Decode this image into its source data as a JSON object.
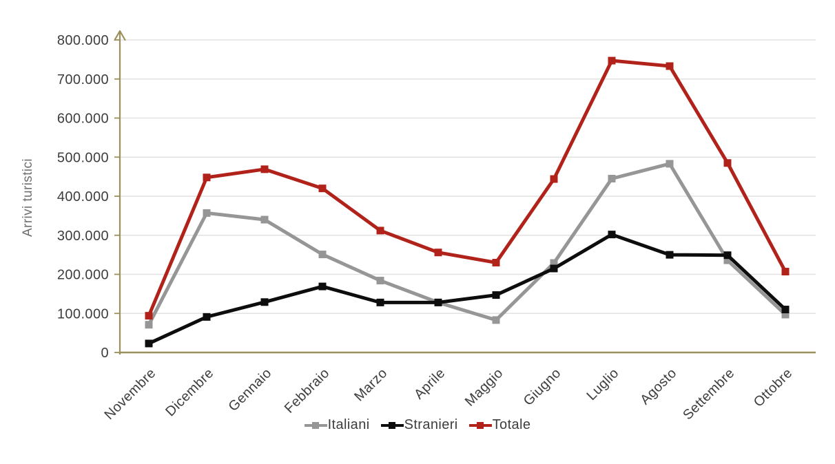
{
  "chart_data": {
    "type": "line",
    "title": "",
    "xlabel": "",
    "ylabel": "Arrivi turistici",
    "categories": [
      "Novembre",
      "Dicembre",
      "Gennaio",
      "Febbraio",
      "Marzo",
      "Aprile",
      "Maggio",
      "Giugno",
      "Luglio",
      "Agosto",
      "Settembre",
      "Ottobre"
    ],
    "series": [
      {
        "name": "Italiani",
        "color": "#969696",
        "marker": "square",
        "values": [
          71000,
          357000,
          340000,
          251000,
          184000,
          128000,
          83000,
          229000,
          445000,
          483000,
          236000,
          97000
        ]
      },
      {
        "name": "Stranieri",
        "color": "#0d0d0d",
        "marker": "square",
        "values": [
          23000,
          91000,
          129000,
          169000,
          128000,
          128000,
          147000,
          215000,
          302000,
          250000,
          249000,
          110000
        ]
      },
      {
        "name": "Totale",
        "color": "#b1231a",
        "marker": "square",
        "values": [
          94000,
          448000,
          469000,
          420000,
          312000,
          256000,
          230000,
          444000,
          747000,
          733000,
          485000,
          207000
        ]
      }
    ],
    "ylim": [
      0,
      800000
    ],
    "ytick_step": 100000,
    "ytick_labels": [
      "0",
      "100.000",
      "200.000",
      "300.000",
      "400.000",
      "500.000",
      "600.000",
      "700.000",
      "800.000"
    ],
    "grid": true,
    "legend_position": "bottom",
    "colors": {
      "axis": "#9b8f5c",
      "gridline": "#e2e2e2",
      "tick_text": "#3d3d3d",
      "ylabel_text": "#6f6f6f",
      "background": "#ffffff"
    }
  }
}
